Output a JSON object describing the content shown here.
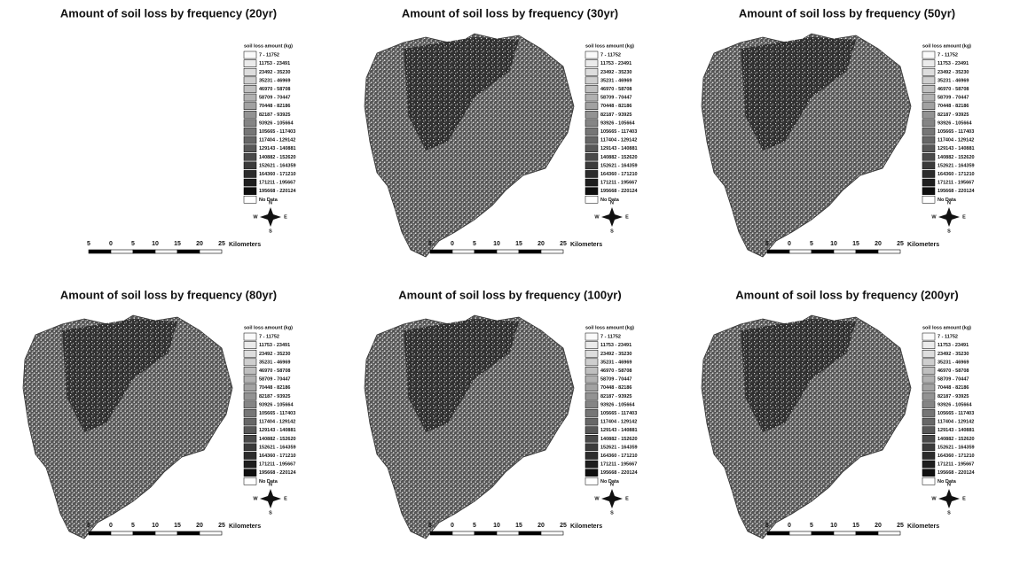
{
  "panels": [
    {
      "title": "Amount of soil loss by frequency (20yr)"
    },
    {
      "title": "Amount of soil loss by frequency (30yr)"
    },
    {
      "title": "Amount of soil loss by frequency (50yr)"
    },
    {
      "title": "Amount of soil loss by frequency (80yr)"
    },
    {
      "title": "Amount of soil loss by frequency (100yr)"
    },
    {
      "title": "Amount of soil loss by frequency (200yr)"
    }
  ],
  "legend": {
    "title": "soil loss amount (kg)",
    "classes": [
      "7 - 11752",
      "11753 - 23491",
      "23492 - 35230",
      "35231 - 46969",
      "46970 - 58708",
      "58709 - 70447",
      "70448 - 82186",
      "82187 - 93925",
      "93926 - 105664",
      "105665 - 117403",
      "117404 - 129142",
      "129143 - 140881",
      "140882 - 152620",
      "152621 - 164359",
      "164360 - 171210",
      "171211 - 195667",
      "195668 - 220124"
    ],
    "no_data": "No Data"
  },
  "scale_bar": {
    "labels": [
      "5",
      "0",
      "5",
      "10",
      "15",
      "20",
      "25"
    ],
    "unit": "Kilometers"
  },
  "compass": {
    "n": "N",
    "e": "E",
    "s": "S",
    "w": "W"
  }
}
